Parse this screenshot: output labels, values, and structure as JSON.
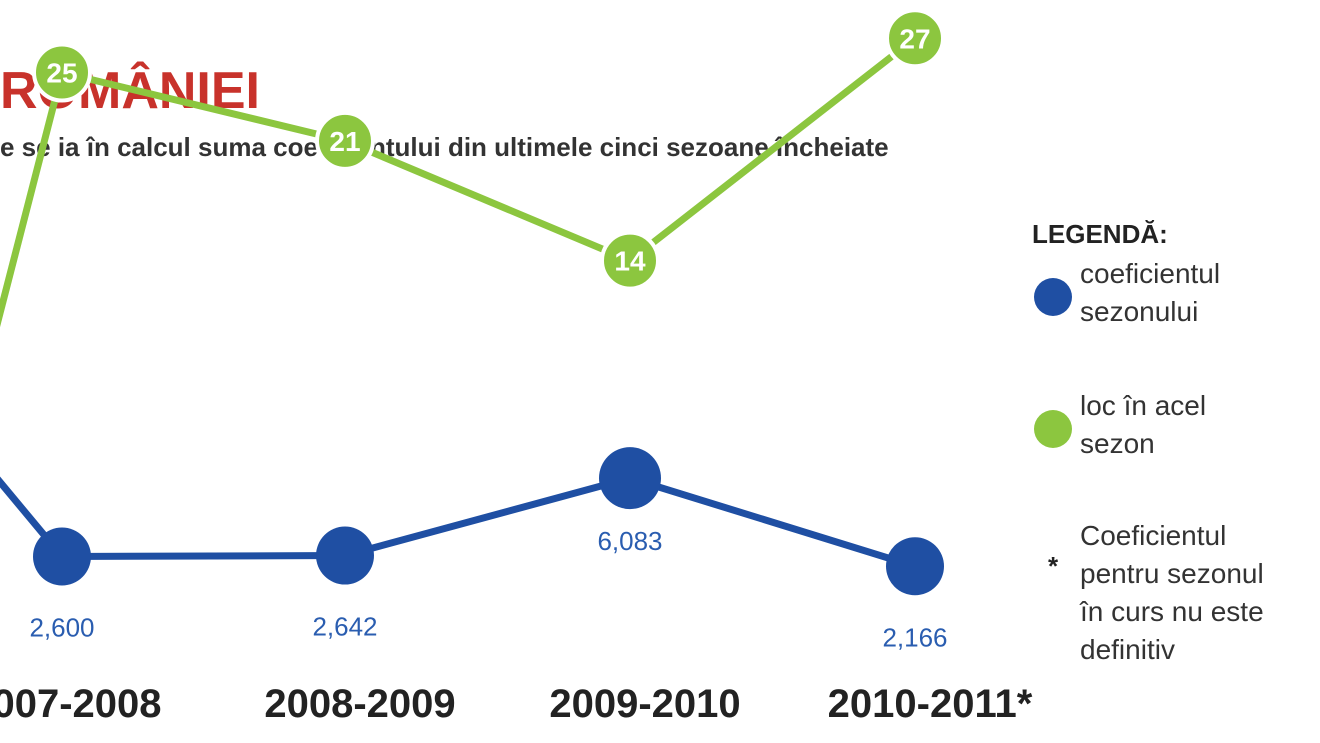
{
  "chart_data": {
    "type": "line",
    "title": "ROMÂNIEI",
    "subtitle": "e se ia în calcul suma coeficientului din ultimele cinci sezoane încheiate",
    "categories": [
      "007-2008",
      "2008-2009",
      "2009-2010",
      "2010-2011*"
    ],
    "series": [
      {
        "name": "coeficientul sezonului",
        "color": "#1f4fa3",
        "values": [
          2.6,
          2.642,
          6.083,
          2.166
        ],
        "labels": [
          "2,600",
          "2,642",
          "6,083",
          "2,166"
        ]
      },
      {
        "name": "loc în acel sezon",
        "color": "#8cc63f",
        "values": [
          25,
          21,
          14,
          27
        ],
        "labels": [
          "25",
          "21",
          "14",
          "27"
        ]
      }
    ],
    "legend": {
      "title": "LEGENDĂ:",
      "items": [
        {
          "marker": "dot",
          "color": "#1f4fa3",
          "lines": [
            "coeficientul",
            "sezonului"
          ]
        },
        {
          "marker": "dot",
          "color": "#8cc63f",
          "lines": [
            "loc în acel",
            "sezon"
          ]
        },
        {
          "marker": "*",
          "color": "#222222",
          "lines": [
            "Coeficientul",
            "pentru sezonul",
            "în curs nu este",
            "definitiv"
          ]
        }
      ]
    },
    "legend_position": "right"
  }
}
